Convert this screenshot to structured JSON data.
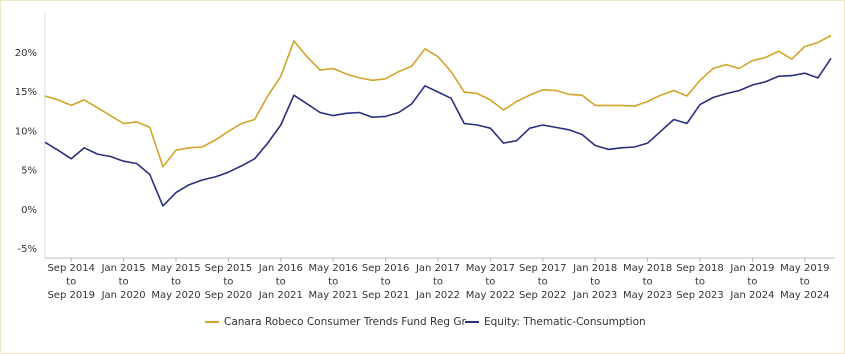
{
  "chart_data": {
    "type": "line",
    "categories": [
      null,
      null,
      [
        "Sep 2014",
        "to",
        "Sep 2019"
      ],
      null,
      null,
      null,
      [
        "Jan 2015",
        "to",
        "Jan 2020"
      ],
      null,
      null,
      null,
      [
        "May 2015",
        "to",
        "May 2020"
      ],
      null,
      null,
      null,
      [
        "Sep 2015",
        "to",
        "Sep 2020"
      ],
      null,
      null,
      null,
      [
        "Jan 2016",
        "to",
        "Jan 2021"
      ],
      null,
      null,
      null,
      [
        "May 2016",
        "to",
        "May 2021"
      ],
      null,
      null,
      null,
      [
        "Sep 2016",
        "to",
        "Sep 2021"
      ],
      null,
      null,
      null,
      [
        "Jan 2017",
        "to",
        "Jan 2022"
      ],
      null,
      null,
      null,
      [
        "May 2017",
        "to",
        "May 2022"
      ],
      null,
      null,
      null,
      [
        "Sep 2017",
        "to",
        "Sep 2022"
      ],
      null,
      null,
      null,
      [
        "Jan 2018",
        "to",
        "Jan 2023"
      ],
      null,
      null,
      null,
      [
        "May 2018",
        "to",
        "May 2023"
      ],
      null,
      null,
      null,
      [
        "Sep 2018",
        "to",
        "Sep 2023"
      ],
      null,
      null,
      null,
      [
        "Jan 2019",
        "to",
        "Jan 2024"
      ],
      null,
      null,
      null,
      [
        "May 2019",
        "to",
        "May 2024"
      ],
      null,
      null
    ],
    "series": [
      {
        "name": "Canara Robeco Consumer Trends Fund Reg Gr",
        "color": "#d1a42a",
        "values": [
          14.5,
          14,
          13.3,
          14,
          13,
          12,
          11,
          11.2,
          10.5,
          5.5,
          7.6,
          7.9,
          8,
          8.9,
          10,
          11,
          11.5,
          14.5,
          17,
          21.5,
          19.5,
          17.8,
          18,
          17.3,
          16.8,
          16.5,
          16.7,
          17.6,
          18.3,
          20.5,
          19.5,
          17.6,
          15,
          14.8,
          14,
          12.7,
          13.8,
          14.6,
          15.3,
          15.2,
          14.7,
          14.6,
          13.3,
          13.3,
          13.3,
          13.2,
          13.8,
          14.6,
          15.2,
          14.5,
          16.5,
          18,
          18.5,
          18,
          19,
          19.4,
          20.2,
          19.2,
          20.8,
          21.3,
          22.2
        ]
      },
      {
        "name": "Equity: Thematic-Consumption",
        "color": "#2a2f7e",
        "values": [
          8.6,
          7.6,
          6.5,
          7.9,
          7.1,
          6.8,
          6.2,
          5.9,
          4.5,
          0.5,
          2.2,
          3.2,
          3.8,
          4.2,
          4.8,
          5.6,
          6.5,
          8.5,
          10.8,
          14.6,
          13.5,
          12.4,
          12,
          12.3,
          12.4,
          11.8,
          11.9,
          12.4,
          13.5,
          15.8,
          15,
          14.2,
          11,
          10.8,
          10.4,
          8.5,
          8.8,
          10.4,
          10.8,
          10.5,
          10.2,
          9.6,
          8.2,
          7.7,
          7.9,
          8,
          8.5,
          10,
          11.5,
          11,
          13.4,
          14.3,
          14.8,
          15.2,
          15.9,
          16.3,
          17,
          17.1,
          17.4,
          16.8,
          19.3
        ]
      }
    ],
    "ylim": [
      -6,
      25
    ],
    "yticks": [
      {
        "value": -5,
        "label": "-5%"
      },
      {
        "value": 0,
        "label": "0%"
      },
      {
        "value": 5,
        "label": "5%"
      },
      {
        "value": 10,
        "label": "10%"
      },
      {
        "value": 15,
        "label": "15%"
      },
      {
        "value": 20,
        "label": "20%"
      }
    ],
    "grid": false
  }
}
